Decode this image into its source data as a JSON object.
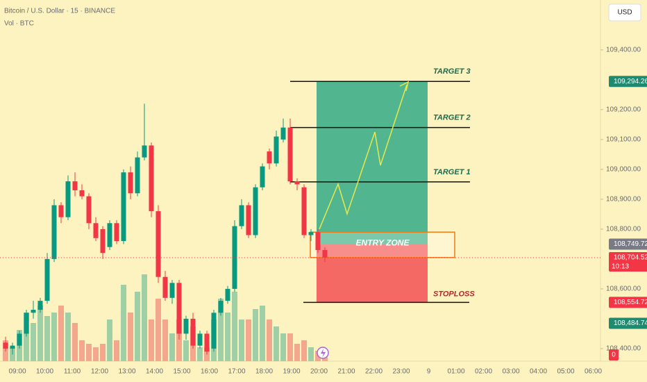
{
  "chart_data": {
    "type": "candlestick",
    "title": "Bitcoin / U.S. Dollar · 15 · BINANCE",
    "subtitle": "Vol · BTC",
    "currency": "USD",
    "ylim": [
      108358,
      109567
    ],
    "yticks": [
      {
        "value": 108400,
        "label": "108,400.00"
      },
      {
        "value": 108600,
        "label": "108,600.00"
      },
      {
        "value": 108800,
        "label": "108,800.00"
      },
      {
        "value": 108900,
        "label": "108,900.00"
      },
      {
        "value": 109000,
        "label": "109,000.00"
      },
      {
        "value": 109100,
        "label": "109,100.00"
      },
      {
        "value": 109200,
        "label": "109,200.00"
      },
      {
        "value": 109400,
        "label": "109,400.00"
      }
    ],
    "categories": [
      "09:00",
      "10:00",
      "11:00",
      "12:00",
      "13:00",
      "14:00",
      "15:00",
      "16:00",
      "17:00",
      "18:00",
      "19:00",
      "20:00",
      "21:00",
      "22:00",
      "23:00",
      "9",
      "01:00",
      "02:00",
      "03:00",
      "04:00",
      "05:00",
      "06:00"
    ],
    "up_color": "#089981",
    "down_color": "#f23645",
    "volume_up_color": "#9fcfa6",
    "volume_down_color": "#f3a78c",
    "volume_ylim": [
      0,
      520
    ],
    "candles": {
      "open": [
        108420,
        108400,
        108410,
        108450,
        108520,
        108530,
        108560,
        108700,
        108880,
        108840,
        108960,
        108930,
        108910,
        108820,
        108800,
        108740,
        108820,
        108760,
        108990,
        108920,
        109040,
        109080,
        108860,
        108640,
        108570,
        108620,
        108450,
        108500,
        108410,
        108450,
        108400,
        108520,
        108560,
        108600,
        108810,
        108880,
        108780,
        108940,
        109060,
        109020,
        109100,
        109140,
        108960,
        108940,
        108780,
        108790,
        108730
      ],
      "high": [
        108440,
        108420,
        108460,
        108530,
        108560,
        108570,
        108720,
        108900,
        108890,
        108980,
        108990,
        108950,
        108920,
        108840,
        108810,
        108830,
        108830,
        109000,
        109010,
        109060,
        109220,
        109090,
        108880,
        108660,
        108630,
        108630,
        108510,
        108520,
        108460,
        108460,
        108530,
        108570,
        108610,
        108830,
        108900,
        108890,
        108950,
        109020,
        109070,
        109130,
        109170,
        109170,
        108970,
        108950,
        108800,
        108800,
        108740
      ],
      "low": [
        108390,
        108380,
        108400,
        108440,
        108500,
        108520,
        108550,
        108690,
        108820,
        108830,
        108910,
        108900,
        108800,
        108760,
        108700,
        108730,
        108750,
        108750,
        108900,
        108910,
        109030,
        108840,
        108620,
        108560,
        108550,
        108430,
        108430,
        108400,
        108400,
        108380,
        108390,
        108510,
        108550,
        108590,
        108800,
        108770,
        108770,
        108930,
        109000,
        109010,
        109090,
        108950,
        108930,
        108770,
        108760,
        108720,
        108690
      ],
      "close": [
        108400,
        108410,
        108450,
        108520,
        108530,
        108560,
        108700,
        108880,
        108840,
        108960,
        108930,
        108910,
        108820,
        108770,
        108720,
        108820,
        108760,
        108990,
        108920,
        109040,
        109080,
        108860,
        108640,
        108570,
        108620,
        108450,
        108500,
        108410,
        108450,
        108390,
        108520,
        108560,
        108600,
        108810,
        108880,
        108780,
        108940,
        109010,
        109020,
        109110,
        109140,
        108960,
        108950,
        108780,
        108790,
        108730,
        108705
      ],
      "volume": [
        30,
        20,
        45,
        70,
        55,
        80,
        65,
        70,
        80,
        70,
        55,
        30,
        25,
        20,
        25,
        60,
        30,
        110,
        70,
        100,
        125,
        60,
        90,
        60,
        40,
        60,
        30,
        50,
        20,
        20,
        60,
        90,
        70,
        100,
        60,
        60,
        75,
        80,
        60,
        50,
        40,
        40,
        25,
        30,
        20,
        15,
        10
      ]
    },
    "current_price": {
      "value": 108704.52,
      "label": "108,704.52",
      "countdown": "10:13",
      "color": "#f23645"
    },
    "price_tags": [
      {
        "value": 109294.26,
        "label": "109,294.26",
        "color": "#1f8a70"
      },
      {
        "value": 108749.72,
        "label": "108,749.72",
        "color": "#787b86"
      },
      {
        "value": 108554.72,
        "label": "108,554.72",
        "color": "#f23645"
      },
      {
        "value": 108484.74,
        "label": "108,484.74",
        "color": "#1f8a70"
      }
    ],
    "volume_tag": {
      "value": 0,
      "color": "#f23645"
    },
    "position": {
      "target": 109294.26,
      "entry": 108749.72,
      "stop": 108554.72,
      "entry_zone": [
        108705,
        108790
      ],
      "entry_label": "ENTRY ZONE",
      "stop_label": "STOPLOSS"
    },
    "targets": [
      {
        "label": "TARGET 1",
        "value": 108958
      },
      {
        "label": "TARGET 2",
        "value": 109140
      },
      {
        "label": "TARGET 3",
        "value": 109294.26
      }
    ]
  }
}
